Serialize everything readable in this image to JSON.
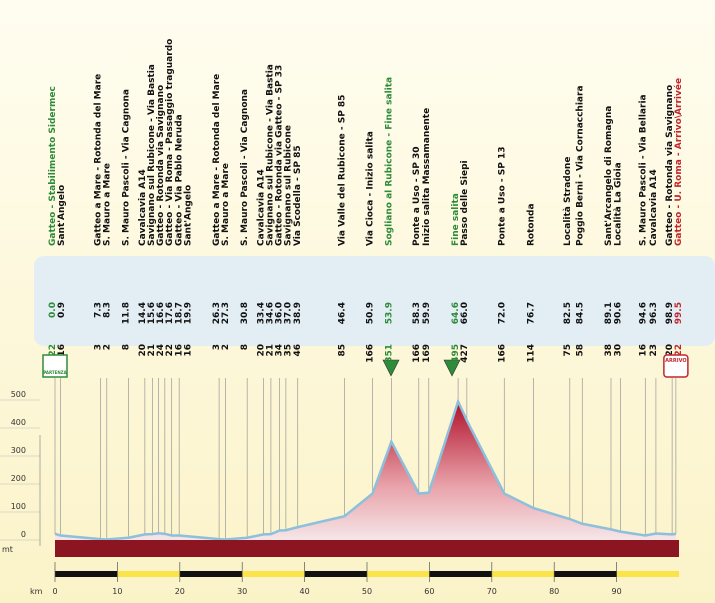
{
  "chart_data": {
    "type": "elevation",
    "names": [
      "Gatteo - Stabilimento Sidermec",
      "Sant'Angelo",
      "Gatteo a Mare - Rotonda del Mare",
      "S. Mauro a Mare",
      "S. Mauro Pascoli - Via Cagnona",
      "Cavalcavia A14",
      "Savignano sul Rubicone - Via Bastia",
      "Gatteo - Rotonda via Savignano",
      "Gatteo - Via Roma - Passaggio traguardo",
      "Gatteo - Via Pablo Neruda",
      "Sant'Angelo",
      "Gatteo a Mare - Rotonda del Mare",
      "S. Mauro a Mare",
      "S. Mauro Pascoli - Via Cagnona",
      "Cavalcavia A14",
      "Savignano sul Rubicone - Via Bastia",
      "Gatteo - Rotonda via Gatteo - SP 33",
      "Savignano sul Rubicone",
      "Via Scodella - SP 85",
      "Via Valle del Rubicone - SP 85",
      "Via Cioca - Inizio salita",
      "Sogliano al Rubicone - Fine salita",
      "Ponte a Uso - SP 30",
      "Inizio salita Massamanente",
      "Fine salita",
      "Passo delle Siepi",
      "Ponte a Uso - SP 13",
      "Rotonda",
      "Località Stradone",
      "Poggio Berni - Via Cornacchiara",
      "Sant'Arcangelo di Romagna",
      "Località La Gioia",
      "S. Mauro Pascoli - Via Bellaria",
      "Cavalcavia A14",
      "Gatteo - Rotonda via Savignano",
      "Gatteo - U. Roma - Arrivo\\Arrivée"
    ],
    "name_colors": [
      "#2e8b3a",
      "#111",
      "#111",
      "#111",
      "#111",
      "#111",
      "#111",
      "#111",
      "#111",
      "#111",
      "#111",
      "#111",
      "#111",
      "#111",
      "#111",
      "#111",
      "#111",
      "#111",
      "#111",
      "#111",
      "#111",
      "#2e8b3a",
      "#111",
      "#111",
      "#2e8b3a",
      "#111",
      "#111",
      "#111",
      "#111",
      "#111",
      "#111",
      "#111",
      "#111",
      "#111",
      "#111",
      "#c0272d"
    ],
    "x": [
      0,
      0.9,
      7.3,
      8.3,
      11.8,
      14.4,
      15.6,
      16.6,
      17.6,
      18.7,
      19.9,
      26.3,
      27.3,
      30.8,
      33.4,
      34.6,
      36,
      37,
      38.9,
      46.4,
      50.9,
      53.9,
      58.3,
      59.9,
      64.6,
      66,
      72,
      76.7,
      82.5,
      84.5,
      89.1,
      90.6,
      94.6,
      96.3,
      98.9,
      99.5
    ],
    "x_labels": [
      "0.0",
      "0.9",
      "7.3",
      "8.3",
      "11.8",
      "14.4",
      "15.6",
      "16.6",
      "17.6",
      "18.7",
      "19.9",
      "26.3",
      "27.3",
      "30.8",
      "33.4",
      "34.6",
      "36.0",
      "37.0",
      "38.9",
      "46.4",
      "50.9",
      "53.9",
      "58.3",
      "59.9",
      "64.6",
      "66.0",
      "72.0",
      "76.7",
      "82.5",
      "84.5",
      "89.1",
      "90.6",
      "94.6",
      "96.3",
      "98.9",
      "99.5"
    ],
    "values": [
      22,
      16,
      3,
      2,
      8,
      20,
      21,
      24,
      22,
      16,
      16,
      3,
      2,
      8,
      20,
      21,
      34,
      35,
      46,
      85,
      166,
      351,
      166,
      169,
      495,
      427,
      166,
      114,
      75,
      58,
      38,
      30,
      16,
      23,
      20,
      22
    ],
    "xlim": [
      0,
      100
    ],
    "xticks": [
      0,
      10,
      20,
      30,
      40,
      50,
      60,
      70,
      80,
      90
    ],
    "ylim": [
      0,
      500
    ],
    "yticks": [
      0,
      100,
      200,
      300,
      400,
      500
    ],
    "x_unit": "km",
    "y_unit": "mt",
    "start_label": "PARTENZA",
    "finish_label": "ARRIVO"
  }
}
